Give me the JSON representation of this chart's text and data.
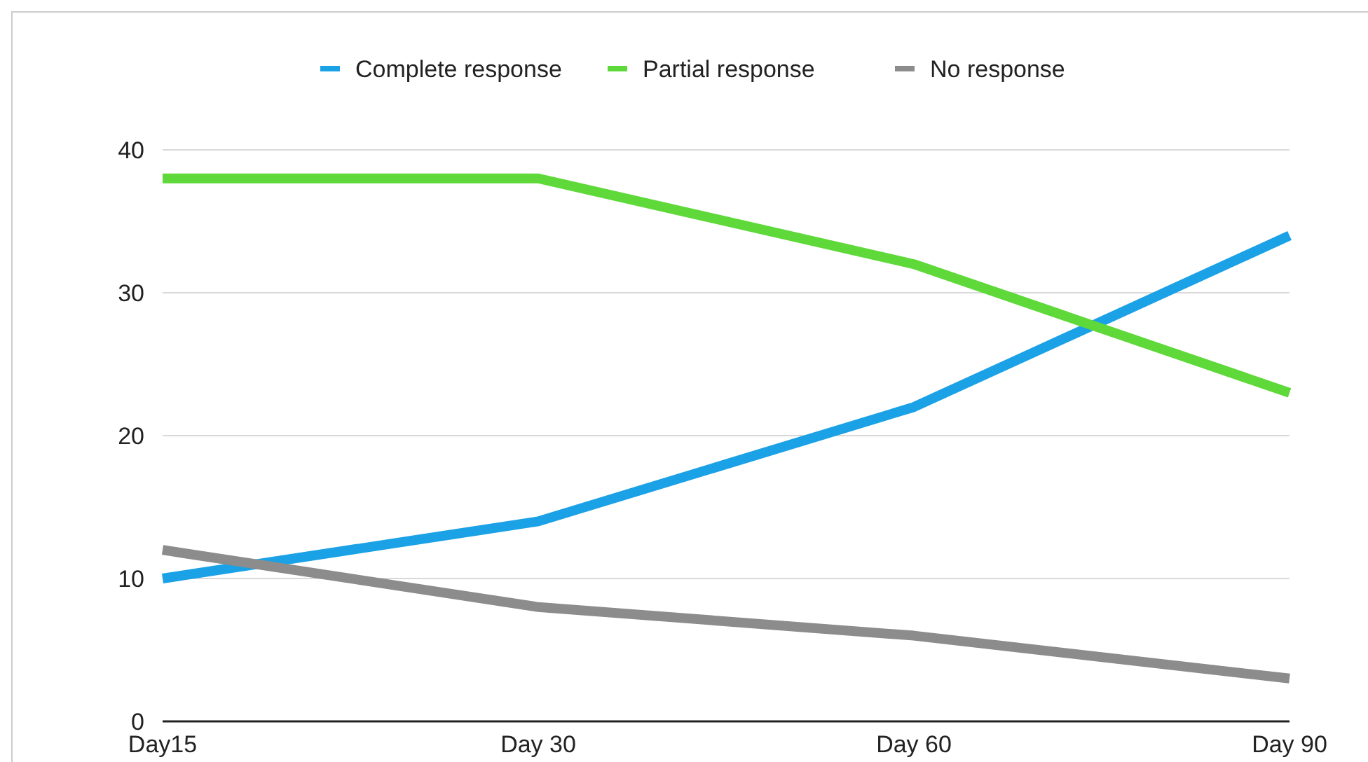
{
  "chart_data": {
    "type": "line",
    "categories": [
      "Day15",
      "Day 30",
      "Day 60",
      "Day 90"
    ],
    "series": [
      {
        "name": "Complete response",
        "color": "#1ba1e6",
        "values": [
          10,
          14,
          22,
          34
        ]
      },
      {
        "name": "Partial response",
        "color": "#5fd93a",
        "values": [
          38,
          38,
          32,
          23
        ]
      },
      {
        "name": "No response",
        "color": "#8c8c8c",
        "values": [
          12,
          8,
          6,
          3
        ]
      }
    ],
    "ylim": [
      0,
      40
    ],
    "yticks": [
      0,
      10,
      20,
      30,
      40
    ],
    "grid": "y",
    "legend": "top",
    "marker": "none",
    "line_style": "solid"
  }
}
